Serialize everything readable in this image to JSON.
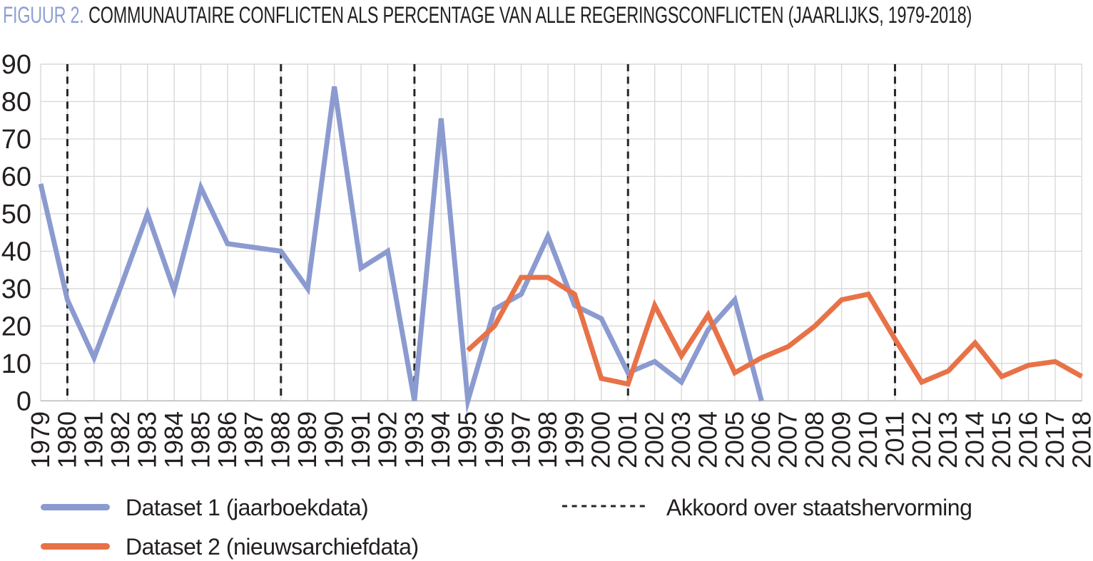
{
  "title": {
    "prefix": "FIGUUR 2.",
    "text": "COMMUNAUTAIRE CONFLICTEN ALS PERCENTAGE VAN ALLE REGERINGSCONFLICTEN (JAARLIJKS, 1979-2018)"
  },
  "colors": {
    "title_accent": "#8d9fd6",
    "text": "#231f20",
    "dataset1": "#8b9bd0",
    "dataset2": "#e87248",
    "reform_line": "#262626",
    "gridline": "#d9d9d9",
    "axis_line": "#bdbdbd"
  },
  "legend": {
    "items": [
      {
        "label": "Dataset 1 (jaarboekdata)",
        "swatch": "blue-solid-line"
      },
      {
        "label": "Dataset 2 (nieuwsarchiefdata)",
        "swatch": "orange-solid-line"
      },
      {
        "label": "Akkoord over staatshervorming",
        "swatch": "black-dashed-line"
      }
    ]
  },
  "chart_data": {
    "type": "line",
    "title": "FIGUUR 2. COMMUNAUTAIRE CONFLICTEN ALS PERCENTAGE VAN ALLE REGERINGSCONFLICTEN (JAARLIJKS, 1979-2018)",
    "xlabel": "",
    "ylabel": "",
    "ylim": [
      0,
      90
    ],
    "yticks": [
      0,
      10,
      20,
      30,
      40,
      50,
      60,
      70,
      80,
      90
    ],
    "grid": true,
    "legend_position": "bottom",
    "x": [
      1979,
      1980,
      1981,
      1982,
      1983,
      1984,
      1985,
      1986,
      1987,
      1988,
      1989,
      1990,
      1991,
      1992,
      1993,
      1994,
      1995,
      1996,
      1997,
      1998,
      1999,
      2000,
      2001,
      2002,
      2003,
      2004,
      2005,
      2006,
      2007,
      2008,
      2009,
      2010,
      2011,
      2012,
      2013,
      2014,
      2015,
      2016,
      2017,
      2018
    ],
    "series": [
      {
        "name": "Dataset 1 (jaarboekdata)",
        "color": "#8b9bd0",
        "values": [
          58,
          27,
          11.5,
          30.5,
          50,
          29.5,
          57,
          42,
          41,
          40,
          30,
          84,
          35.5,
          40,
          0,
          75.5,
          0,
          24.5,
          28.5,
          44,
          25.5,
          22,
          7.5,
          10.5,
          5,
          19,
          27,
          0,
          null,
          null,
          null,
          null,
          null,
          null,
          null,
          null,
          null,
          null,
          null,
          null
        ]
      },
      {
        "name": "Dataset 2 (nieuwsarchiefdata)",
        "color": "#e87248",
        "values": [
          null,
          null,
          null,
          null,
          null,
          null,
          null,
          null,
          null,
          null,
          null,
          null,
          null,
          null,
          null,
          null,
          13.5,
          20,
          33,
          33,
          28.5,
          6,
          4.5,
          25.5,
          12,
          23,
          7.5,
          11.5,
          14.5,
          20,
          27,
          28.5,
          16.5,
          5,
          8,
          15.5,
          6.5,
          9.5,
          10.5,
          6.5
        ]
      }
    ],
    "event_lines": {
      "label": "Akkoord over staatshervorming",
      "style": "dashed",
      "color": "#262626",
      "years": [
        1980,
        1988,
        1993,
        2001,
        2011
      ]
    }
  }
}
